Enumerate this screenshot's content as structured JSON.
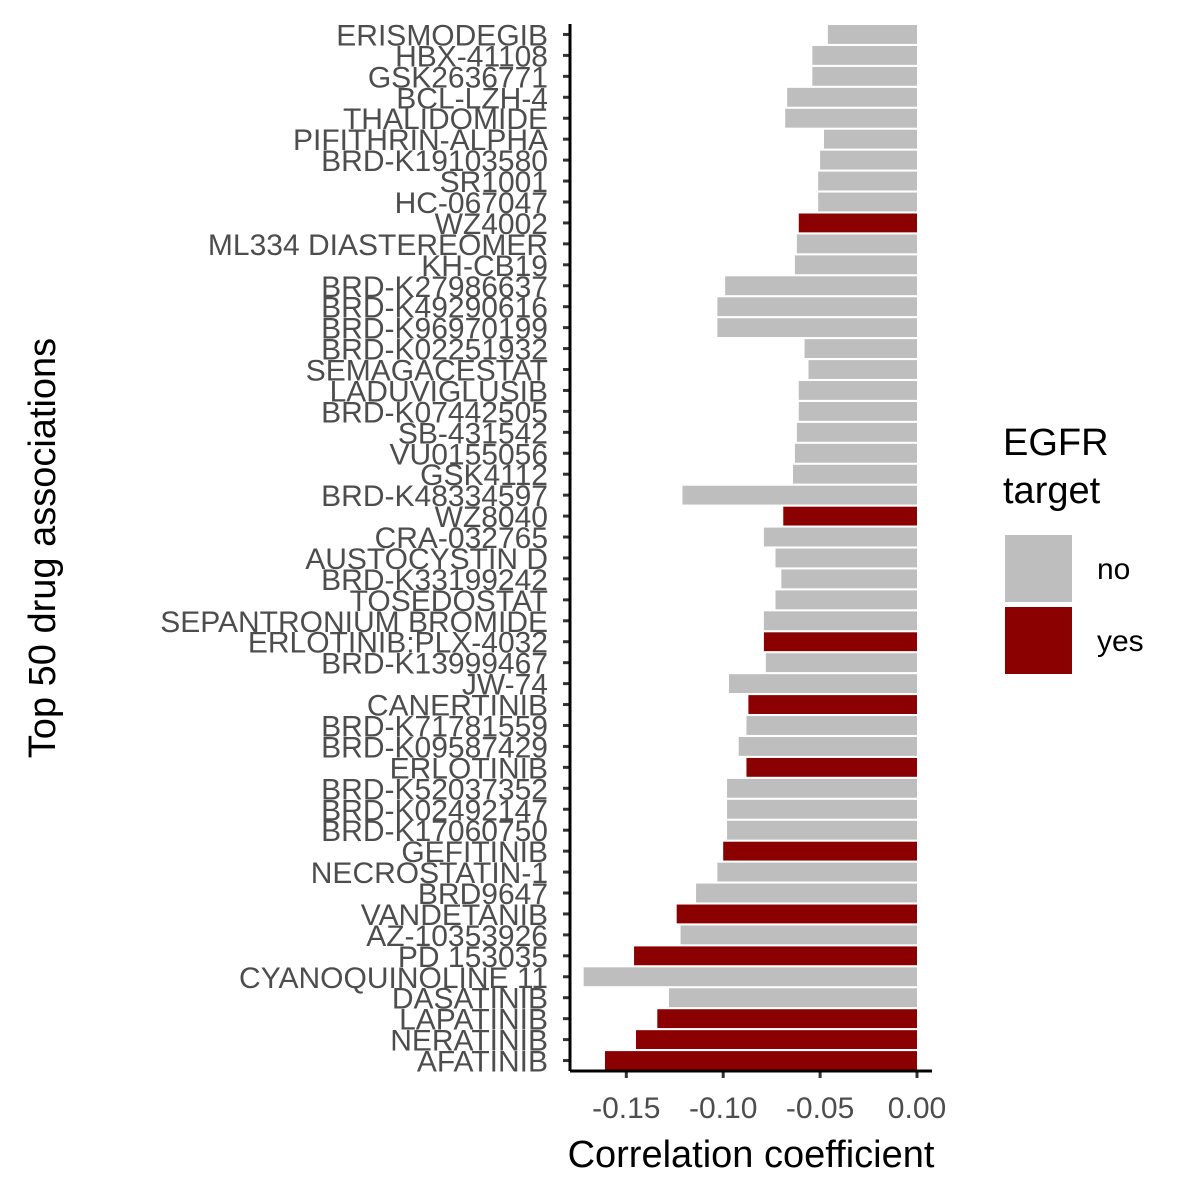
{
  "chart_data": {
    "type": "bar",
    "orientation": "horizontal",
    "title": "",
    "xlabel": "Correlation coefficient",
    "ylabel": "Top 50 drug associations",
    "xlim": [
      -0.18,
      0.007
    ],
    "x_ticks": [
      -0.15,
      -0.1,
      -0.05,
      0.0
    ],
    "x_tick_labels": [
      "-0.15",
      "-0.10",
      "-0.05",
      "0.00"
    ],
    "grid": false,
    "legend": {
      "title": [
        "EGFR",
        "target"
      ],
      "placement": "right",
      "entries": [
        {
          "label": "no",
          "color": "#bebebe"
        },
        {
          "label": "yes",
          "color": "#8b0000"
        }
      ]
    },
    "colors": {
      "no": "#bebebe",
      "yes": "#8b0000"
    },
    "categories": [
      "ERISMODEGIB",
      "HBX-41108",
      "GSK2636771",
      "BCL-LZH-4",
      "THALIDOMIDE",
      "PIFITHRIN-ALPHA",
      "BRD-K19103580",
      "SR1001",
      "HC-067047",
      "WZ4002",
      "ML334 DIASTEREOMER",
      "KH-CB19",
      "BRD-K27986637",
      "BRD-K49290616",
      "BRD-K96970199",
      "BRD-K02251932",
      "SEMAGACESTAT",
      "LADUVIGLUSIB",
      "BRD-K07442505",
      "SB-431542",
      "VU0155056",
      "GSK4112",
      "BRD-K48334597",
      "WZ8040",
      "CRA-032765",
      "AUSTOCYSTIN D",
      "BRD-K33199242",
      "TOSEDOSTAT",
      "SEPANTRONIUM BROMIDE",
      "ERLOTINIB:PLX-4032",
      "BRD-K13999467",
      "JW-74",
      "CANERTINIB",
      "BRD-K71781559",
      "BRD-K09587429",
      "ERLOTINIB",
      "BRD-K52037352",
      "BRD-K02492147",
      "BRD-K17060750",
      "GEFITINIB",
      "NECROSTATIN-1",
      "BRD9647",
      "VANDETANIB",
      "AZ-10353926",
      "PD 153035",
      "CYANOQUINOLINE 11",
      "DASATINIB",
      "LAPATINIB",
      "NERATINIB",
      "AFATINIB"
    ],
    "values": [
      -0.046,
      -0.054,
      -0.054,
      -0.067,
      -0.068,
      -0.048,
      -0.05,
      -0.051,
      -0.051,
      -0.061,
      -0.062,
      -0.063,
      -0.099,
      -0.103,
      -0.103,
      -0.058,
      -0.056,
      -0.061,
      -0.061,
      -0.062,
      -0.063,
      -0.064,
      -0.121,
      -0.069,
      -0.079,
      -0.073,
      -0.07,
      -0.073,
      -0.079,
      -0.079,
      -0.078,
      -0.097,
      -0.087,
      -0.088,
      -0.092,
      -0.088,
      -0.098,
      -0.098,
      -0.098,
      -0.1,
      -0.103,
      -0.114,
      -0.124,
      -0.122,
      -0.146,
      -0.172,
      -0.128,
      -0.134,
      -0.145,
      -0.161
    ],
    "egfr_target": [
      "no",
      "no",
      "no",
      "no",
      "no",
      "no",
      "no",
      "no",
      "no",
      "yes",
      "no",
      "no",
      "no",
      "no",
      "no",
      "no",
      "no",
      "no",
      "no",
      "no",
      "no",
      "no",
      "no",
      "yes",
      "no",
      "no",
      "no",
      "no",
      "no",
      "yes",
      "no",
      "no",
      "yes",
      "no",
      "no",
      "yes",
      "no",
      "no",
      "no",
      "yes",
      "no",
      "no",
      "yes",
      "no",
      "yes",
      "no",
      "no",
      "yes",
      "yes",
      "yes"
    ]
  }
}
